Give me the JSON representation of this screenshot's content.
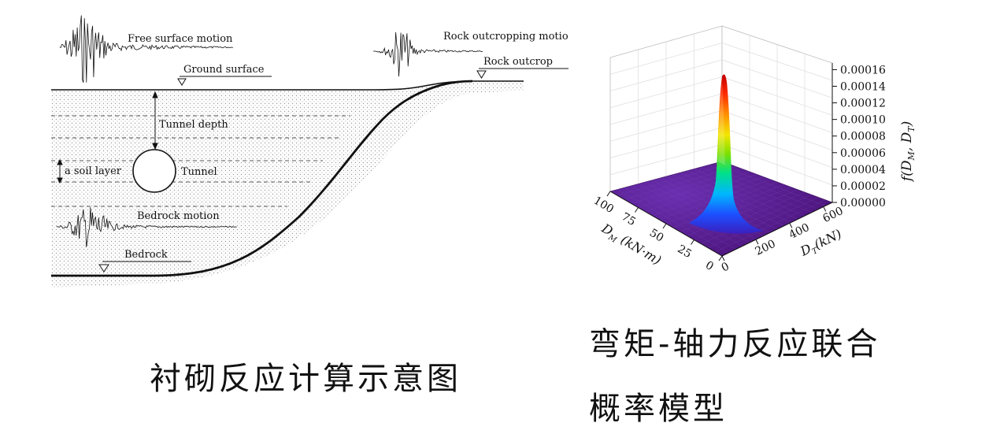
{
  "left_diagram": {
    "labels": {
      "free_surface_motion": "Free surface motion",
      "ground_surface": "Ground surface",
      "rock_outcropping_motion": "Rock outcropping motio",
      "rock_outcrop": "Rock outcrop",
      "tunnel_depth": "Tunnel depth",
      "soil_layer": "a soil layer",
      "tunnel": "Tunnel",
      "bedrock_motion": "Bedrock motion",
      "bedrock": "Bedrock"
    }
  },
  "right_plot": {
    "z_axis_label_main": "f(D",
    "z_axis_label_sub_m": "M",
    "z_axis_label_sep": ", D",
    "z_axis_label_sub_t": "T",
    "z_axis_label_end": ")",
    "x_axis_label_main": "D",
    "x_axis_label_sub": "M",
    "x_axis_label_unit": " (kN·m)",
    "y_axis_label_main": "D",
    "y_axis_label_sub": "T",
    "y_axis_label_unit": "(kN)",
    "z_ticks": [
      "0.00000",
      "0.00002",
      "0.00004",
      "0.00006",
      "0.00008",
      "0.00010",
      "0.00012",
      "0.00014",
      "0.00016"
    ],
    "x_ticks": [
      "100",
      "75",
      "50",
      "25",
      "0"
    ],
    "y_ticks": [
      "0",
      "200",
      "400",
      "600"
    ],
    "colors": {
      "surface_base": "#5a1a8a",
      "peak": "#d10000"
    }
  },
  "captions": {
    "left": "衬砌反应计算示意图",
    "right_line1": "弯矩-轴力反应联合",
    "right_line2": "概率模型"
  }
}
